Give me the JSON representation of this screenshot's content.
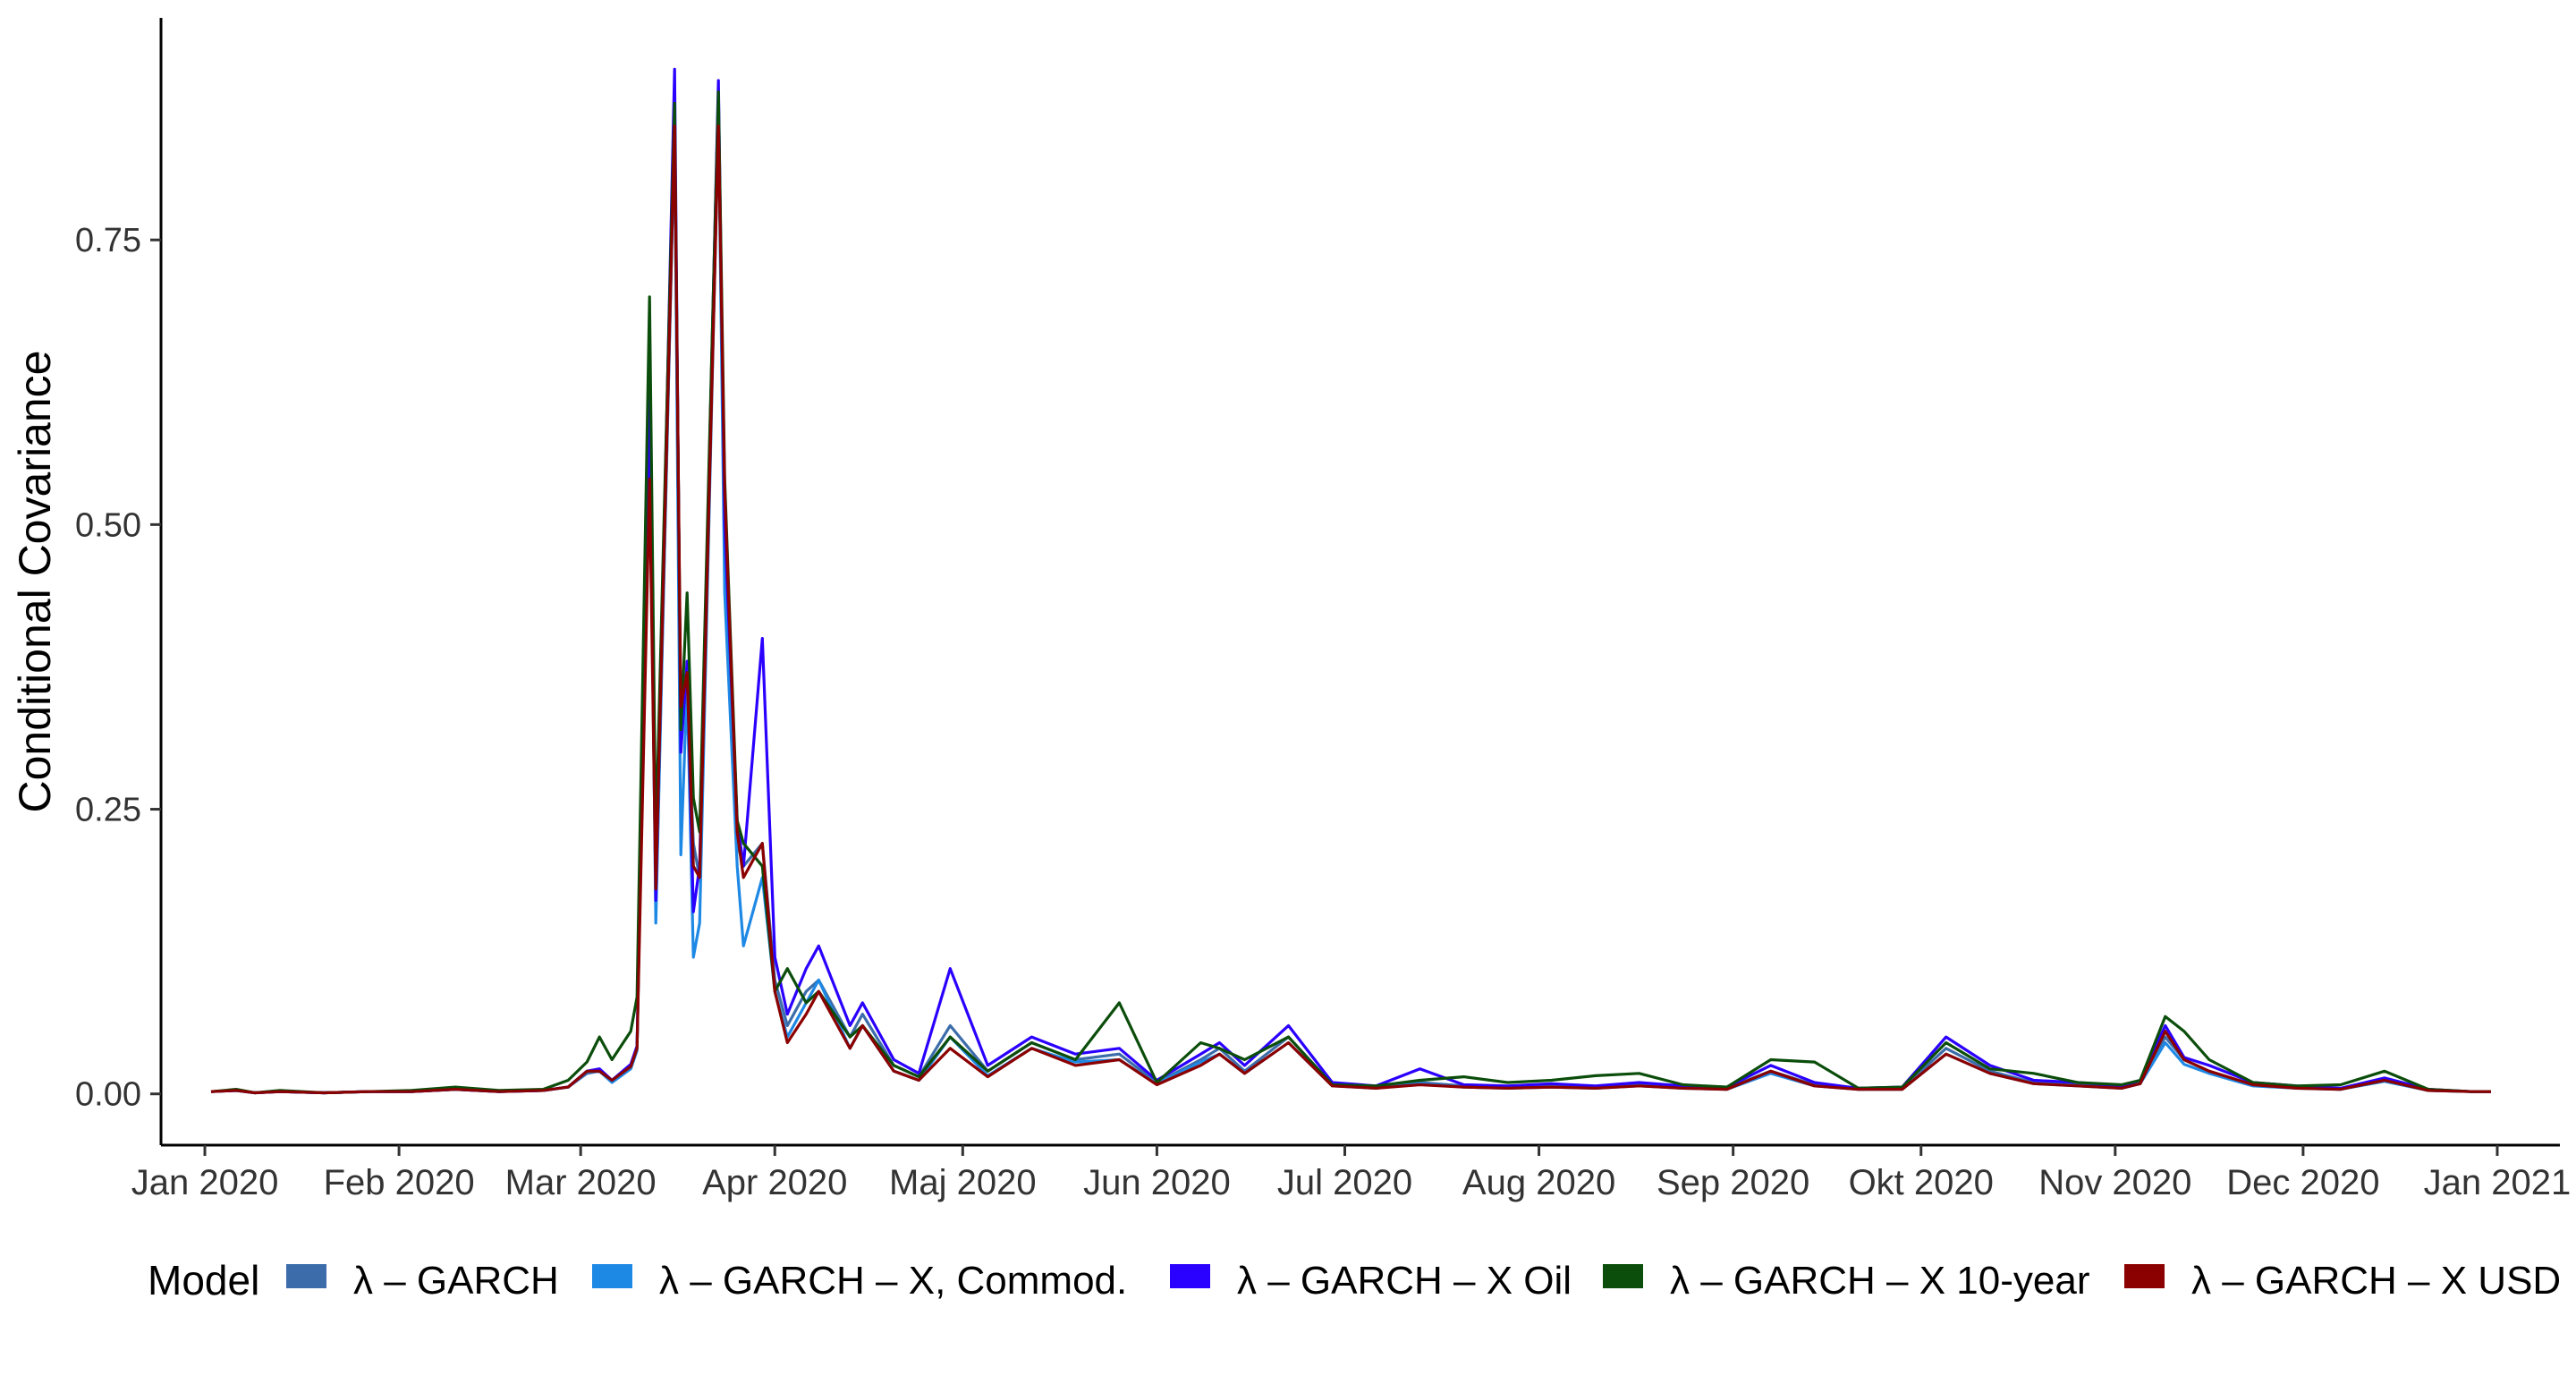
{
  "chart_data": {
    "type": "line",
    "title": "",
    "xlabel": "",
    "ylabel": "Conditional Covariance",
    "ylim": [
      -0.045,
      0.945
    ],
    "xlim": [
      "2019-12-25",
      "2021-01-11"
    ],
    "grid": false,
    "legend_position": "bottom",
    "legend_title": "Model",
    "y_ticks": [
      0,
      0.25,
      0.5,
      0.75
    ],
    "y_tick_labels": [
      "0.00",
      "0.25",
      "0.50",
      "0.75"
    ],
    "x_ticks": [
      "2020-01-01",
      "2020-02-01",
      "2020-03-01",
      "2020-04-01",
      "2020-05-01",
      "2020-06-01",
      "2020-07-01",
      "2020-08-01",
      "2020-09-01",
      "2020-10-01",
      "2020-11-01",
      "2020-12-01",
      "2021-01-01"
    ],
    "x_tick_labels": [
      "Jan 2020",
      "Feb 2020",
      "Mar 2020",
      "Apr 2020",
      "Maj 2020",
      "Jun 2020",
      "Jul 2020",
      "Aug 2020",
      "Sep 2020",
      "Okt 2020",
      "Nov 2020",
      "Dec 2020",
      "Jan 2021"
    ],
    "x": [
      "2020-01-02",
      "2020-01-06",
      "2020-01-09",
      "2020-01-13",
      "2020-01-20",
      "2020-01-27",
      "2020-02-03",
      "2020-02-10",
      "2020-02-17",
      "2020-02-24",
      "2020-02-28",
      "2020-03-02",
      "2020-03-04",
      "2020-03-06",
      "2020-03-09",
      "2020-03-10",
      "2020-03-12",
      "2020-03-13",
      "2020-03-16",
      "2020-03-17",
      "2020-03-18",
      "2020-03-19",
      "2020-03-20",
      "2020-03-23",
      "2020-03-24",
      "2020-03-26",
      "2020-03-27",
      "2020-03-30",
      "2020-04-01",
      "2020-04-03",
      "2020-04-06",
      "2020-04-08",
      "2020-04-13",
      "2020-04-15",
      "2020-04-20",
      "2020-04-24",
      "2020-04-29",
      "2020-05-05",
      "2020-05-12",
      "2020-05-19",
      "2020-05-26",
      "2020-06-01",
      "2020-06-08",
      "2020-06-11",
      "2020-06-15",
      "2020-06-22",
      "2020-06-29",
      "2020-07-06",
      "2020-07-13",
      "2020-07-20",
      "2020-07-27",
      "2020-08-03",
      "2020-08-10",
      "2020-08-17",
      "2020-08-24",
      "2020-08-31",
      "2020-09-07",
      "2020-09-14",
      "2020-09-21",
      "2020-09-28",
      "2020-10-05",
      "2020-10-12",
      "2020-10-19",
      "2020-10-26",
      "2020-11-02",
      "2020-11-05",
      "2020-11-09",
      "2020-11-12",
      "2020-11-16",
      "2020-11-23",
      "2020-11-30",
      "2020-12-07",
      "2020-12-14",
      "2020-12-21",
      "2020-12-28",
      "2020-12-31"
    ],
    "series": [
      {
        "name": "λ – GARCH",
        "color": "#3C6DAA",
        "values": [
          0.002,
          0.003,
          0.001,
          0.002,
          0.001,
          0.002,
          0.002,
          0.004,
          0.002,
          0.003,
          0.006,
          0.018,
          0.02,
          0.012,
          0.025,
          0.04,
          0.6,
          0.16,
          0.85,
          0.33,
          0.35,
          0.22,
          0.19,
          0.86,
          0.5,
          0.22,
          0.2,
          0.22,
          0.1,
          0.06,
          0.09,
          0.1,
          0.05,
          0.07,
          0.025,
          0.015,
          0.06,
          0.02,
          0.045,
          0.03,
          0.035,
          0.01,
          0.03,
          0.04,
          0.02,
          0.05,
          0.008,
          0.006,
          0.01,
          0.007,
          0.006,
          0.007,
          0.006,
          0.008,
          0.006,
          0.005,
          0.02,
          0.008,
          0.004,
          0.005,
          0.04,
          0.02,
          0.01,
          0.008,
          0.006,
          0.01,
          0.05,
          0.03,
          0.02,
          0.008,
          0.006,
          0.004,
          0.012,
          0.003,
          0.002,
          0.002
        ]
      },
      {
        "name": "λ – GARCH – X, Commod.",
        "color": "#1E88E5",
        "values": [
          0.002,
          0.003,
          0.001,
          0.002,
          0.001,
          0.002,
          0.002,
          0.004,
          0.002,
          0.003,
          0.006,
          0.02,
          0.02,
          0.01,
          0.022,
          0.038,
          0.62,
          0.15,
          0.85,
          0.21,
          0.36,
          0.12,
          0.15,
          0.86,
          0.44,
          0.2,
          0.13,
          0.19,
          0.09,
          0.05,
          0.08,
          0.1,
          0.04,
          0.06,
          0.02,
          0.012,
          0.05,
          0.016,
          0.04,
          0.028,
          0.03,
          0.009,
          0.028,
          0.035,
          0.018,
          0.045,
          0.007,
          0.005,
          0.009,
          0.006,
          0.005,
          0.006,
          0.005,
          0.007,
          0.005,
          0.004,
          0.018,
          0.007,
          0.004,
          0.004,
          0.035,
          0.018,
          0.009,
          0.007,
          0.005,
          0.009,
          0.045,
          0.026,
          0.018,
          0.007,
          0.005,
          0.004,
          0.011,
          0.003,
          0.002,
          0.002
        ]
      },
      {
        "name": "λ – GARCH – X Oil",
        "color": "#2A00FF",
        "values": [
          0.002,
          0.003,
          0.001,
          0.002,
          0.001,
          0.002,
          0.002,
          0.004,
          0.002,
          0.003,
          0.006,
          0.02,
          0.022,
          0.012,
          0.026,
          0.042,
          0.62,
          0.17,
          0.9,
          0.3,
          0.38,
          0.16,
          0.2,
          0.89,
          0.5,
          0.24,
          0.2,
          0.4,
          0.12,
          0.07,
          0.11,
          0.13,
          0.06,
          0.08,
          0.03,
          0.018,
          0.11,
          0.025,
          0.05,
          0.035,
          0.04,
          0.012,
          0.035,
          0.045,
          0.025,
          0.06,
          0.01,
          0.007,
          0.022,
          0.008,
          0.007,
          0.009,
          0.007,
          0.01,
          0.007,
          0.006,
          0.025,
          0.01,
          0.005,
          0.006,
          0.05,
          0.025,
          0.012,
          0.01,
          0.007,
          0.012,
          0.06,
          0.032,
          0.025,
          0.01,
          0.007,
          0.005,
          0.014,
          0.004,
          0.002,
          0.002
        ]
      },
      {
        "name": "λ – GARCH – X 10-year",
        "color": "#0B4D0B",
        "values": [
          0.002,
          0.004,
          0.001,
          0.003,
          0.001,
          0.002,
          0.003,
          0.006,
          0.003,
          0.004,
          0.012,
          0.028,
          0.05,
          0.03,
          0.055,
          0.085,
          0.7,
          0.22,
          0.87,
          0.32,
          0.44,
          0.26,
          0.23,
          0.88,
          0.54,
          0.24,
          0.22,
          0.2,
          0.09,
          0.11,
          0.08,
          0.09,
          0.05,
          0.06,
          0.025,
          0.015,
          0.05,
          0.02,
          0.045,
          0.03,
          0.08,
          0.01,
          0.045,
          0.04,
          0.03,
          0.05,
          0.008,
          0.007,
          0.012,
          0.015,
          0.01,
          0.012,
          0.016,
          0.018,
          0.008,
          0.006,
          0.03,
          0.028,
          0.005,
          0.006,
          0.045,
          0.022,
          0.018,
          0.01,
          0.008,
          0.012,
          0.068,
          0.055,
          0.03,
          0.01,
          0.007,
          0.008,
          0.02,
          0.004,
          0.002,
          0.002
        ]
      },
      {
        "name": "λ – GARCH – X USD",
        "color": "#8B0000",
        "values": [
          0.002,
          0.003,
          0.001,
          0.002,
          0.001,
          0.002,
          0.002,
          0.004,
          0.002,
          0.003,
          0.006,
          0.02,
          0.02,
          0.012,
          0.024,
          0.04,
          0.54,
          0.18,
          0.85,
          0.34,
          0.37,
          0.2,
          0.19,
          0.85,
          0.53,
          0.23,
          0.19,
          0.22,
          0.09,
          0.045,
          0.07,
          0.09,
          0.04,
          0.06,
          0.02,
          0.012,
          0.04,
          0.015,
          0.04,
          0.025,
          0.03,
          0.008,
          0.025,
          0.035,
          0.018,
          0.045,
          0.007,
          0.005,
          0.008,
          0.006,
          0.005,
          0.006,
          0.005,
          0.007,
          0.005,
          0.004,
          0.02,
          0.007,
          0.004,
          0.004,
          0.035,
          0.018,
          0.009,
          0.007,
          0.005,
          0.009,
          0.055,
          0.03,
          0.02,
          0.008,
          0.005,
          0.004,
          0.012,
          0.003,
          0.002,
          0.002
        ]
      }
    ]
  }
}
